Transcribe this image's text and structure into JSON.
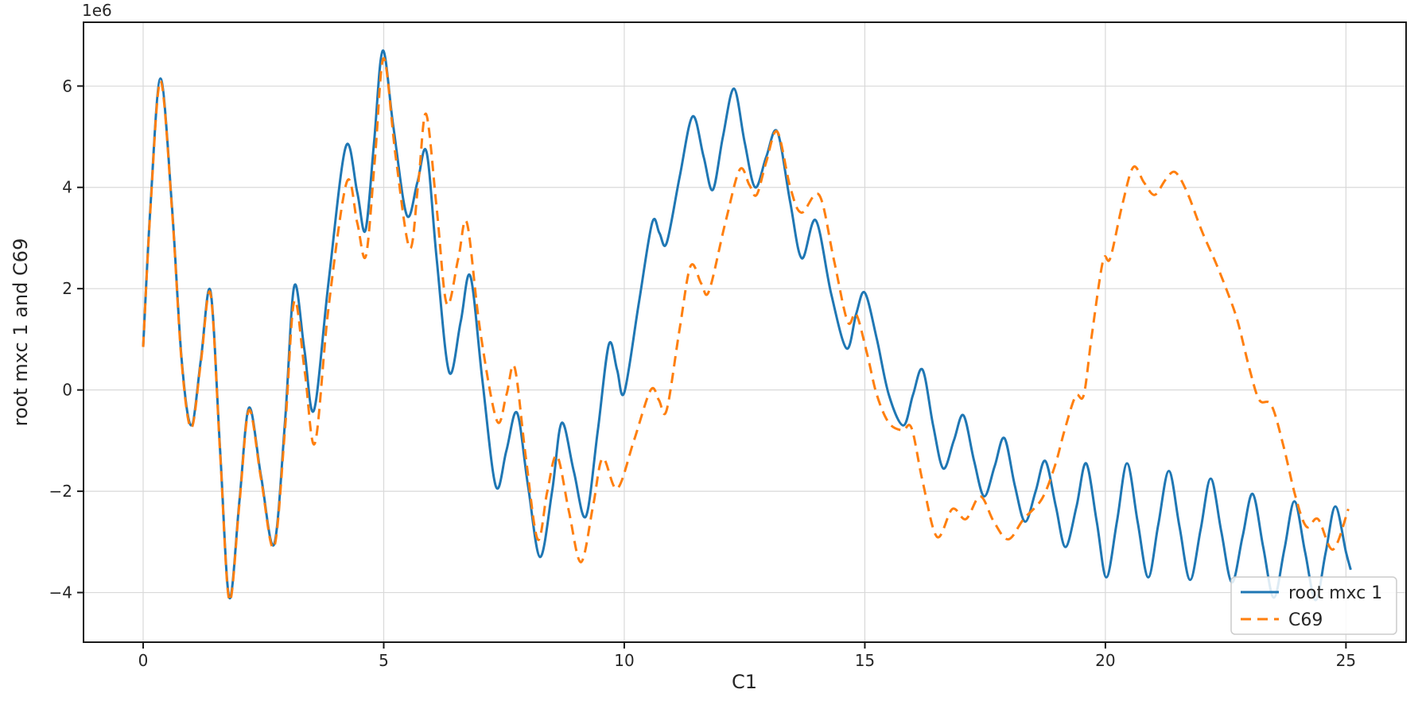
{
  "chart_data": {
    "type": "line",
    "title": "",
    "xlabel": "C1",
    "ylabel": "root mxc 1 and C69",
    "y_offset_text": "1e6",
    "y_unit_multiplier": 1000000,
    "x_ticks": [
      0,
      5,
      10,
      15,
      20,
      25
    ],
    "y_ticks": [
      -4,
      -2,
      0,
      2,
      4,
      6
    ],
    "xlim": [
      -1.24,
      26.25
    ],
    "ylim": [
      -4.98,
      7.26
    ],
    "grid": true,
    "grid_color": "#d9d9d9",
    "spine_color": "#1a1a1a",
    "legend_position": "lower right",
    "legend_labels": [
      "root mxc 1",
      "C69"
    ],
    "series": [
      {
        "name": "root mxc 1",
        "color": "#1f77b4",
        "style": "solid",
        "points": [
          [
            0,
            0.85
          ],
          [
            0.15,
            3.6
          ],
          [
            0.36,
            6.15
          ],
          [
            0.6,
            3.6
          ],
          [
            0.8,
            0.6
          ],
          [
            1.0,
            -0.7
          ],
          [
            1.2,
            0.6
          ],
          [
            1.4,
            1.95
          ],
          [
            1.6,
            -1.2
          ],
          [
            1.79,
            -4.1
          ],
          [
            2.0,
            -2.2
          ],
          [
            2.2,
            -0.35
          ],
          [
            2.45,
            -1.7
          ],
          [
            2.72,
            -3.05
          ],
          [
            2.95,
            -0.6
          ],
          [
            3.14,
            2.05
          ],
          [
            3.35,
            0.8
          ],
          [
            3.55,
            -0.4
          ],
          [
            3.85,
            2.1
          ],
          [
            4.21,
            4.8
          ],
          [
            4.45,
            3.9
          ],
          [
            4.62,
            3.15
          ],
          [
            4.8,
            4.9
          ],
          [
            4.98,
            6.7
          ],
          [
            5.2,
            5.2
          ],
          [
            5.48,
            3.45
          ],
          [
            5.7,
            4.1
          ],
          [
            5.89,
            4.7
          ],
          [
            6.1,
            2.6
          ],
          [
            6.36,
            0.35
          ],
          [
            6.6,
            1.35
          ],
          [
            6.8,
            2.25
          ],
          [
            7.05,
            0.2
          ],
          [
            7.33,
            -1.9
          ],
          [
            7.55,
            -1.2
          ],
          [
            7.77,
            -0.45
          ],
          [
            8.0,
            -1.9
          ],
          [
            8.25,
            -3.3
          ],
          [
            8.5,
            -2.0
          ],
          [
            8.7,
            -0.65
          ],
          [
            8.95,
            -1.6
          ],
          [
            9.2,
            -2.5
          ],
          [
            9.45,
            -0.8
          ],
          [
            9.68,
            0.9
          ],
          [
            9.85,
            0.4
          ],
          [
            10.0,
            -0.05
          ],
          [
            10.3,
            1.7
          ],
          [
            10.58,
            3.3
          ],
          [
            10.73,
            3.1
          ],
          [
            10.88,
            2.9
          ],
          [
            11.15,
            4.2
          ],
          [
            11.42,
            5.4
          ],
          [
            11.65,
            4.6
          ],
          [
            11.84,
            3.95
          ],
          [
            12.05,
            5.0
          ],
          [
            12.28,
            5.95
          ],
          [
            12.5,
            4.9
          ],
          [
            12.72,
            4.0
          ],
          [
            12.95,
            4.6
          ],
          [
            13.18,
            5.1
          ],
          [
            13.45,
            3.7
          ],
          [
            13.69,
            2.6
          ],
          [
            13.98,
            3.35
          ],
          [
            14.3,
            1.9
          ],
          [
            14.62,
            0.82
          ],
          [
            14.82,
            1.5
          ],
          [
            15.0,
            1.92
          ],
          [
            15.25,
            1.0
          ],
          [
            15.5,
            -0.1
          ],
          [
            15.8,
            -0.7
          ],
          [
            16.0,
            -0.1
          ],
          [
            16.2,
            0.4
          ],
          [
            16.42,
            -0.7
          ],
          [
            16.63,
            -1.55
          ],
          [
            16.85,
            -1.0
          ],
          [
            17.05,
            -0.5
          ],
          [
            17.27,
            -1.4
          ],
          [
            17.48,
            -2.1
          ],
          [
            17.7,
            -1.5
          ],
          [
            17.9,
            -0.95
          ],
          [
            18.12,
            -1.9
          ],
          [
            18.33,
            -2.6
          ],
          [
            18.55,
            -2.0
          ],
          [
            18.75,
            -1.4
          ],
          [
            18.97,
            -2.3
          ],
          [
            19.17,
            -3.1
          ],
          [
            19.4,
            -2.3
          ],
          [
            19.6,
            -1.45
          ],
          [
            19.82,
            -2.6
          ],
          [
            20.02,
            -3.7
          ],
          [
            20.24,
            -2.6
          ],
          [
            20.45,
            -1.45
          ],
          [
            20.67,
            -2.6
          ],
          [
            20.89,
            -3.7
          ],
          [
            21.1,
            -2.65
          ],
          [
            21.32,
            -1.6
          ],
          [
            21.54,
            -2.7
          ],
          [
            21.76,
            -3.75
          ],
          [
            21.98,
            -2.75
          ],
          [
            22.19,
            -1.75
          ],
          [
            22.41,
            -2.8
          ],
          [
            22.63,
            -3.8
          ],
          [
            22.85,
            -2.9
          ],
          [
            23.06,
            -2.05
          ],
          [
            23.28,
            -3.1
          ],
          [
            23.5,
            -4.1
          ],
          [
            23.72,
            -3.15
          ],
          [
            23.93,
            -2.2
          ],
          [
            24.15,
            -3.2
          ],
          [
            24.37,
            -4.15
          ],
          [
            24.58,
            -3.2
          ],
          [
            24.78,
            -2.3
          ],
          [
            25.0,
            -3.2
          ],
          [
            25.1,
            -3.55
          ]
        ]
      },
      {
        "name": "C69",
        "color": "#ff7f0e",
        "style": "dashed",
        "points": [
          [
            0,
            0.85
          ],
          [
            0.15,
            3.55
          ],
          [
            0.36,
            6.1
          ],
          [
            0.6,
            3.55
          ],
          [
            0.8,
            0.55
          ],
          [
            1.0,
            -0.75
          ],
          [
            1.2,
            0.55
          ],
          [
            1.4,
            1.9
          ],
          [
            1.6,
            -1.25
          ],
          [
            1.79,
            -4.15
          ],
          [
            2.0,
            -2.25
          ],
          [
            2.2,
            -0.4
          ],
          [
            2.45,
            -1.75
          ],
          [
            2.72,
            -3.1
          ],
          [
            2.95,
            -0.75
          ],
          [
            3.14,
            1.75
          ],
          [
            3.36,
            0.35
          ],
          [
            3.57,
            -1.05
          ],
          [
            3.85,
            1.6
          ],
          [
            4.23,
            4.1
          ],
          [
            4.45,
            3.3
          ],
          [
            4.63,
            2.65
          ],
          [
            4.82,
            4.6
          ],
          [
            5.0,
            6.55
          ],
          [
            5.25,
            4.6
          ],
          [
            5.54,
            2.8
          ],
          [
            5.72,
            4.1
          ],
          [
            5.88,
            5.45
          ],
          [
            6.1,
            3.6
          ],
          [
            6.31,
            1.7
          ],
          [
            6.55,
            2.6
          ],
          [
            6.73,
            3.3
          ],
          [
            7.0,
            1.2
          ],
          [
            7.35,
            -0.6
          ],
          [
            7.55,
            -0.1
          ],
          [
            7.72,
            0.45
          ],
          [
            7.95,
            -1.3
          ],
          [
            8.2,
            -2.95
          ],
          [
            8.4,
            -2.0
          ],
          [
            8.6,
            -1.3
          ],
          [
            8.85,
            -2.4
          ],
          [
            9.1,
            -3.4
          ],
          [
            9.35,
            -2.3
          ],
          [
            9.55,
            -1.35
          ],
          [
            9.85,
            -1.95
          ],
          [
            10.2,
            -1.0
          ],
          [
            10.55,
            0.0
          ],
          [
            10.72,
            -0.2
          ],
          [
            10.88,
            -0.4
          ],
          [
            11.15,
            1.2
          ],
          [
            11.38,
            2.45
          ],
          [
            11.6,
            2.1
          ],
          [
            11.76,
            1.95
          ],
          [
            12.1,
            3.3
          ],
          [
            12.4,
            4.35
          ],
          [
            12.6,
            4.05
          ],
          [
            12.75,
            3.85
          ],
          [
            12.95,
            4.5
          ],
          [
            13.18,
            5.1
          ],
          [
            13.45,
            4.0
          ],
          [
            13.68,
            3.5
          ],
          [
            14.05,
            3.85
          ],
          [
            14.35,
            2.6
          ],
          [
            14.64,
            1.35
          ],
          [
            14.82,
            1.5
          ],
          [
            15.05,
            0.7
          ],
          [
            15.25,
            -0.1
          ],
          [
            15.5,
            -0.65
          ],
          [
            15.78,
            -0.8
          ],
          [
            15.97,
            -0.75
          ],
          [
            16.2,
            -1.8
          ],
          [
            16.5,
            -2.9
          ],
          [
            16.82,
            -2.35
          ],
          [
            17.1,
            -2.55
          ],
          [
            17.4,
            -2.1
          ],
          [
            17.68,
            -2.6
          ],
          [
            17.98,
            -2.95
          ],
          [
            18.3,
            -2.55
          ],
          [
            18.68,
            -2.15
          ],
          [
            18.95,
            -1.5
          ],
          [
            19.15,
            -0.8
          ],
          [
            19.38,
            -0.12
          ],
          [
            19.55,
            -0.1
          ],
          [
            19.72,
            1.1
          ],
          [
            19.95,
            2.55
          ],
          [
            20.1,
            2.6
          ],
          [
            20.35,
            3.65
          ],
          [
            20.58,
            4.4
          ],
          [
            20.8,
            4.1
          ],
          [
            21.02,
            3.85
          ],
          [
            21.25,
            4.15
          ],
          [
            21.45,
            4.3
          ],
          [
            21.7,
            3.9
          ],
          [
            22.0,
            3.15
          ],
          [
            22.3,
            2.5
          ],
          [
            22.55,
            1.9
          ],
          [
            22.75,
            1.35
          ],
          [
            23.0,
            0.4
          ],
          [
            23.2,
            -0.2
          ],
          [
            23.45,
            -0.3
          ],
          [
            23.7,
            -1.1
          ],
          [
            23.95,
            -2.1
          ],
          [
            24.18,
            -2.7
          ],
          [
            24.42,
            -2.55
          ],
          [
            24.73,
            -3.15
          ],
          [
            25.05,
            -2.35
          ]
        ]
      }
    ]
  }
}
